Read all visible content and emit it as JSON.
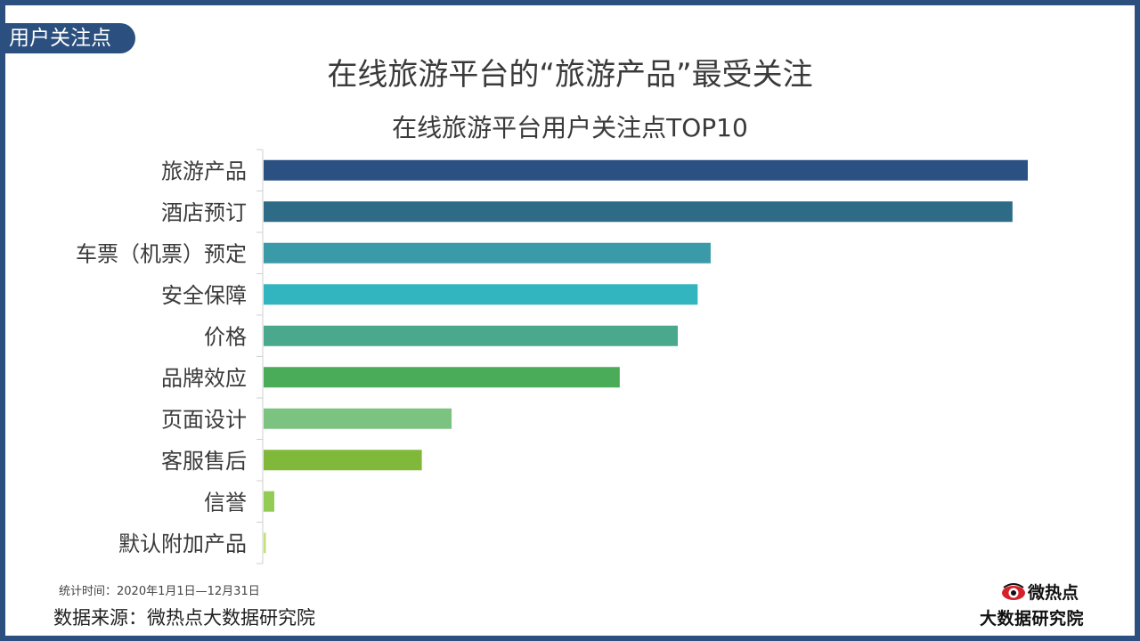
{
  "tag_label": "用户关注点",
  "footer": {
    "note": "统计时间：2020年1月1日—12月31日",
    "source": "数据来源：微热点大数据研究院"
  },
  "logo": {
    "name": "微热点",
    "subtitle": "大数据研究院",
    "icon": "eye-logo-icon"
  },
  "colors": {
    "frame": "#2b4f7e",
    "bars": [
      "#2b5082",
      "#2d6b87",
      "#3a9aa8",
      "#33b5c0",
      "#4aa88c",
      "#4aab58",
      "#7cc382",
      "#80b83a",
      "#93cc55",
      "#c6e07a"
    ]
  },
  "chart_data": {
    "type": "bar",
    "orientation": "horizontal",
    "title": "在线旅游平台的“旅游产品”最受关注",
    "subtitle": "在线旅游平台用户关注点TOP10",
    "categories": [
      "旅游产品",
      "酒店预订",
      "车票（机票）预定",
      "安全保障",
      "价格",
      "品牌效应",
      "页面设计",
      "客服售后",
      "信誉",
      "默认附加产品"
    ],
    "values": [
      100,
      98,
      58.5,
      56.8,
      54.2,
      46.6,
      24.6,
      20.7,
      1.4,
      0.3
    ],
    "xlim": [
      0,
      100
    ],
    "grid": false,
    "legend": "none"
  }
}
